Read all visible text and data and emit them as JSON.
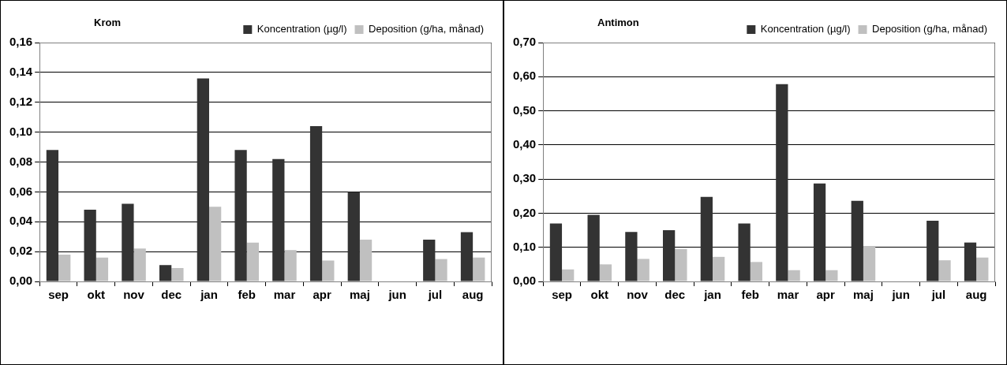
{
  "chart_data": [
    {
      "type": "bar",
      "title": "Krom",
      "categories": [
        "sep",
        "okt",
        "nov",
        "dec",
        "jan",
        "feb",
        "mar",
        "apr",
        "maj",
        "jun",
        "jul",
        "aug"
      ],
      "series": [
        {
          "name": "Koncentration (µg/l)",
          "color": "#333333",
          "values": [
            0.088,
            0.048,
            0.052,
            0.011,
            0.136,
            0.088,
            0.082,
            0.104,
            0.06,
            null,
            0.028,
            0.033
          ]
        },
        {
          "name": "Deposition (g/ha, månad)",
          "color": "#c0c0c0",
          "values": [
            0.018,
            0.016,
            0.022,
            0.009,
            0.05,
            0.026,
            0.021,
            0.014,
            0.028,
            null,
            0.015,
            0.016
          ]
        }
      ],
      "ylim": [
        0,
        0.16
      ],
      "yticks": [
        {
          "value": 0,
          "label": "0,00"
        },
        {
          "value": 0.02,
          "label": "0,02"
        },
        {
          "value": 0.04,
          "label": "0,04"
        },
        {
          "value": 0.06,
          "label": "0,06"
        },
        {
          "value": 0.08,
          "label": "0,08"
        },
        {
          "value": 0.1,
          "label": "0,10"
        },
        {
          "value": 0.12,
          "label": "0,12"
        },
        {
          "value": 0.14,
          "label": "0,14"
        },
        {
          "value": 0.16,
          "label": "0,16"
        }
      ],
      "grid": "y",
      "legend": "top right"
    },
    {
      "type": "bar",
      "title": "Antimon",
      "categories": [
        "sep",
        "okt",
        "nov",
        "dec",
        "jan",
        "feb",
        "mar",
        "apr",
        "maj",
        "jun",
        "jul",
        "aug"
      ],
      "series": [
        {
          "name": "Koncentration (µg/l)",
          "color": "#333333",
          "values": [
            0.17,
            0.195,
            0.145,
            0.15,
            0.248,
            0.17,
            0.578,
            0.287,
            0.236,
            null,
            0.178,
            0.114
          ]
        },
        {
          "name": "Deposition (g/ha, månad)",
          "color": "#c0c0c0",
          "values": [
            0.035,
            0.05,
            0.066,
            0.095,
            0.072,
            0.057,
            0.033,
            0.033,
            0.104,
            null,
            0.062,
            0.07
          ]
        }
      ],
      "ylim": [
        0,
        0.7
      ],
      "yticks": [
        {
          "value": 0,
          "label": "0,00"
        },
        {
          "value": 0.1,
          "label": "0,10"
        },
        {
          "value": 0.2,
          "label": "0,20"
        },
        {
          "value": 0.3,
          "label": "0,30"
        },
        {
          "value": 0.4,
          "label": "0,40"
        },
        {
          "value": 0.5,
          "label": "0,50"
        },
        {
          "value": 0.6,
          "label": "0,60"
        },
        {
          "value": 0.7,
          "label": "0,70"
        }
      ],
      "grid": "y",
      "legend": "top right"
    }
  ]
}
